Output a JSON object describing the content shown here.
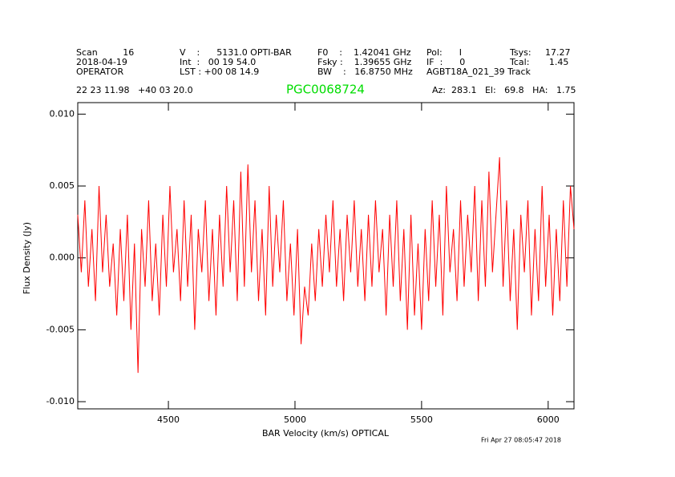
{
  "chart_data": {
    "type": "line",
    "title": "PGC0068724",
    "header": {
      "columns": [
        [
          "Scan         16",
          "2018-04-19",
          "OPERATOR"
        ],
        [
          "V    :      5131.0 OPTI-BAR",
          "Int  :   00 19 54.0",
          "LST : +00 08 14.9"
        ],
        [
          "F0    :    1.42041 GHz",
          "Fsky :    1.39655 GHz",
          "BW    :   16.8750 MHz"
        ],
        [
          "Pol:      I",
          "IF  :      0",
          "AGBT18A_021_39 Track"
        ],
        [
          "Tsys:     17.27",
          "Tcal:       1.45"
        ]
      ],
      "coordinates": "22 23 11.98   +40 03 20.0",
      "pointing": "Az:  283.1   El:   69.8   HA:   1.75"
    },
    "xlabel": "BAR Velocity (km/s) OPTICAL",
    "ylabel": "Flux Density (Jy)",
    "timestamp": "Fri Apr 27 08:05:47 2018",
    "color": "#ff0000",
    "xlim": [
      4142,
      6102
    ],
    "ylim": [
      -0.0105,
      0.0108
    ],
    "xticks": [
      4500,
      5000,
      5500,
      6000
    ],
    "yticks": [
      {
        "value": 0.01,
        "label": "0.010"
      },
      {
        "value": 0.005,
        "label": "0.005"
      },
      {
        "value": 0,
        "label": "0.000"
      },
      {
        "value": -0.005,
        "label": "-0.005"
      },
      {
        "value": -0.01,
        "label": "-0.010"
      }
    ],
    "grid": false,
    "x": [
      4142,
      4156,
      4170,
      4184,
      4198,
      4212,
      4226,
      4240,
      4254,
      4268,
      4282,
      4296,
      4310,
      4324,
      4338,
      4352,
      4366,
      4380,
      4394,
      4408,
      4422,
      4436,
      4450,
      4464,
      4478,
      4492,
      4506,
      4520,
      4534,
      4548,
      4562,
      4576,
      4590,
      4604,
      4618,
      4632,
      4646,
      4660,
      4674,
      4688,
      4702,
      4716,
      4730,
      4744,
      4758,
      4772,
      4786,
      4800,
      4814,
      4828,
      4842,
      4856,
      4870,
      4884,
      4898,
      4912,
      4926,
      4940,
      4954,
      4968,
      4982,
      4996,
      5010,
      5024,
      5038,
      5052,
      5066,
      5080,
      5094,
      5108,
      5122,
      5136,
      5150,
      5164,
      5178,
      5192,
      5206,
      5220,
      5234,
      5248,
      5262,
      5276,
      5290,
      5304,
      5318,
      5332,
      5346,
      5360,
      5374,
      5388,
      5402,
      5416,
      5430,
      5444,
      5458,
      5472,
      5486,
      5500,
      5514,
      5528,
      5542,
      5556,
      5570,
      5584,
      5598,
      5612,
      5626,
      5640,
      5654,
      5668,
      5682,
      5696,
      5710,
      5724,
      5738,
      5752,
      5766,
      5780,
      5794,
      5808,
      5822,
      5836,
      5850,
      5864,
      5878,
      5892,
      5906,
      5920,
      5934,
      5948,
      5962,
      5976,
      5990,
      6004,
      6018,
      6032,
      6046,
      6060,
      6074,
      6088,
      6102
    ],
    "values": [
      0.003,
      -0.001,
      0.004,
      -0.002,
      0.002,
      -0.003,
      0.005,
      -0.001,
      0.003,
      -0.002,
      0.001,
      -0.004,
      0.002,
      -0.003,
      0.003,
      -0.005,
      0.001,
      -0.008,
      0.002,
      -0.002,
      0.004,
      -0.003,
      0.001,
      -0.004,
      0.003,
      -0.002,
      0.005,
      -0.001,
      0.002,
      -0.003,
      0.004,
      -0.002,
      0.003,
      -0.005,
      0.002,
      -0.001,
      0.004,
      -0.003,
      0.002,
      -0.004,
      0.003,
      -0.002,
      0.005,
      -0.001,
      0.004,
      -0.003,
      0.006,
      -0.002,
      0.0065,
      -0.001,
      0.004,
      -0.003,
      0.002,
      -0.004,
      0.005,
      -0.002,
      0.003,
      -0.001,
      0.004,
      -0.003,
      0.001,
      -0.004,
      0.002,
      -0.006,
      -0.002,
      -0.004,
      0.001,
      -0.003,
      0.002,
      -0.002,
      0.003,
      -0.001,
      0.004,
      -0.002,
      0.002,
      -0.003,
      0.003,
      -0.001,
      0.004,
      -0.002,
      0.002,
      -0.003,
      0.003,
      -0.002,
      0.004,
      -0.001,
      0.002,
      -0.004,
      0.003,
      -0.002,
      0.004,
      -0.003,
      0.002,
      -0.005,
      0.003,
      -0.004,
      0.001,
      -0.005,
      0.002,
      -0.003,
      0.004,
      -0.002,
      0.003,
      -0.004,
      0.005,
      -0.001,
      0.002,
      -0.003,
      0.004,
      -0.002,
      0.003,
      -0.001,
      0.005,
      -0.003,
      0.004,
      -0.002,
      0.006,
      -0.001,
      0.003,
      0.007,
      -0.002,
      0.004,
      -0.003,
      0.002,
      -0.005,
      0.003,
      -0.001,
      0.004,
      -0.004,
      0.002,
      -0.003,
      0.005,
      -0.002,
      0.003,
      -0.004,
      0.002,
      -0.003,
      0.004,
      -0.002,
      0.005,
      0.002
    ]
  }
}
